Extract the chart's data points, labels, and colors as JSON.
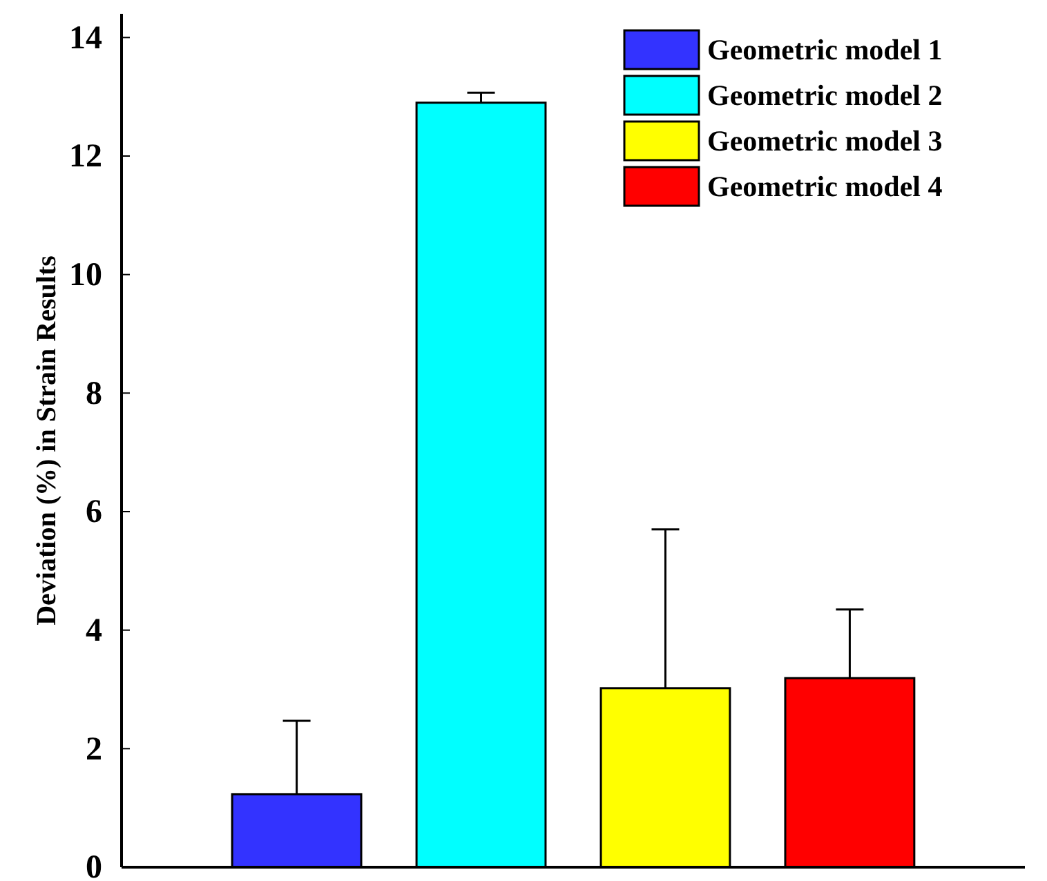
{
  "chart_data": {
    "type": "bar",
    "ylabel": "Deviation (%) in Strain Results",
    "categories": [
      null,
      null,
      null,
      null
    ],
    "series": [
      {
        "name": "Geometric model 1",
        "color": "#3333ff",
        "values": [
          1.23,
          null,
          null,
          null
        ],
        "errors": [
          [
            1.23,
            2.47
          ],
          null,
          null,
          null
        ]
      },
      {
        "name": "Geometric model 2",
        "color": "#00ffff",
        "values": [
          null,
          12.9,
          null,
          null
        ],
        "errors": [
          null,
          [
            12.9,
            13.07
          ],
          null,
          null
        ]
      },
      {
        "name": "Geometric model 3",
        "color": "#ffff00",
        "values": [
          null,
          null,
          3.02,
          null
        ],
        "errors": [
          null,
          null,
          [
            3.02,
            5.7
          ],
          null
        ]
      },
      {
        "name": "Geometric model 4",
        "color": "#ff0000",
        "values": [
          null,
          null,
          null,
          3.19
        ],
        "errors": [
          null,
          null,
          null,
          [
            3.19,
            4.35
          ]
        ]
      }
    ],
    "ylim": [
      0,
      14.4
    ],
    "yticks": [
      0,
      2,
      4,
      6,
      8,
      10,
      12,
      14
    ],
    "legend": "top right"
  }
}
